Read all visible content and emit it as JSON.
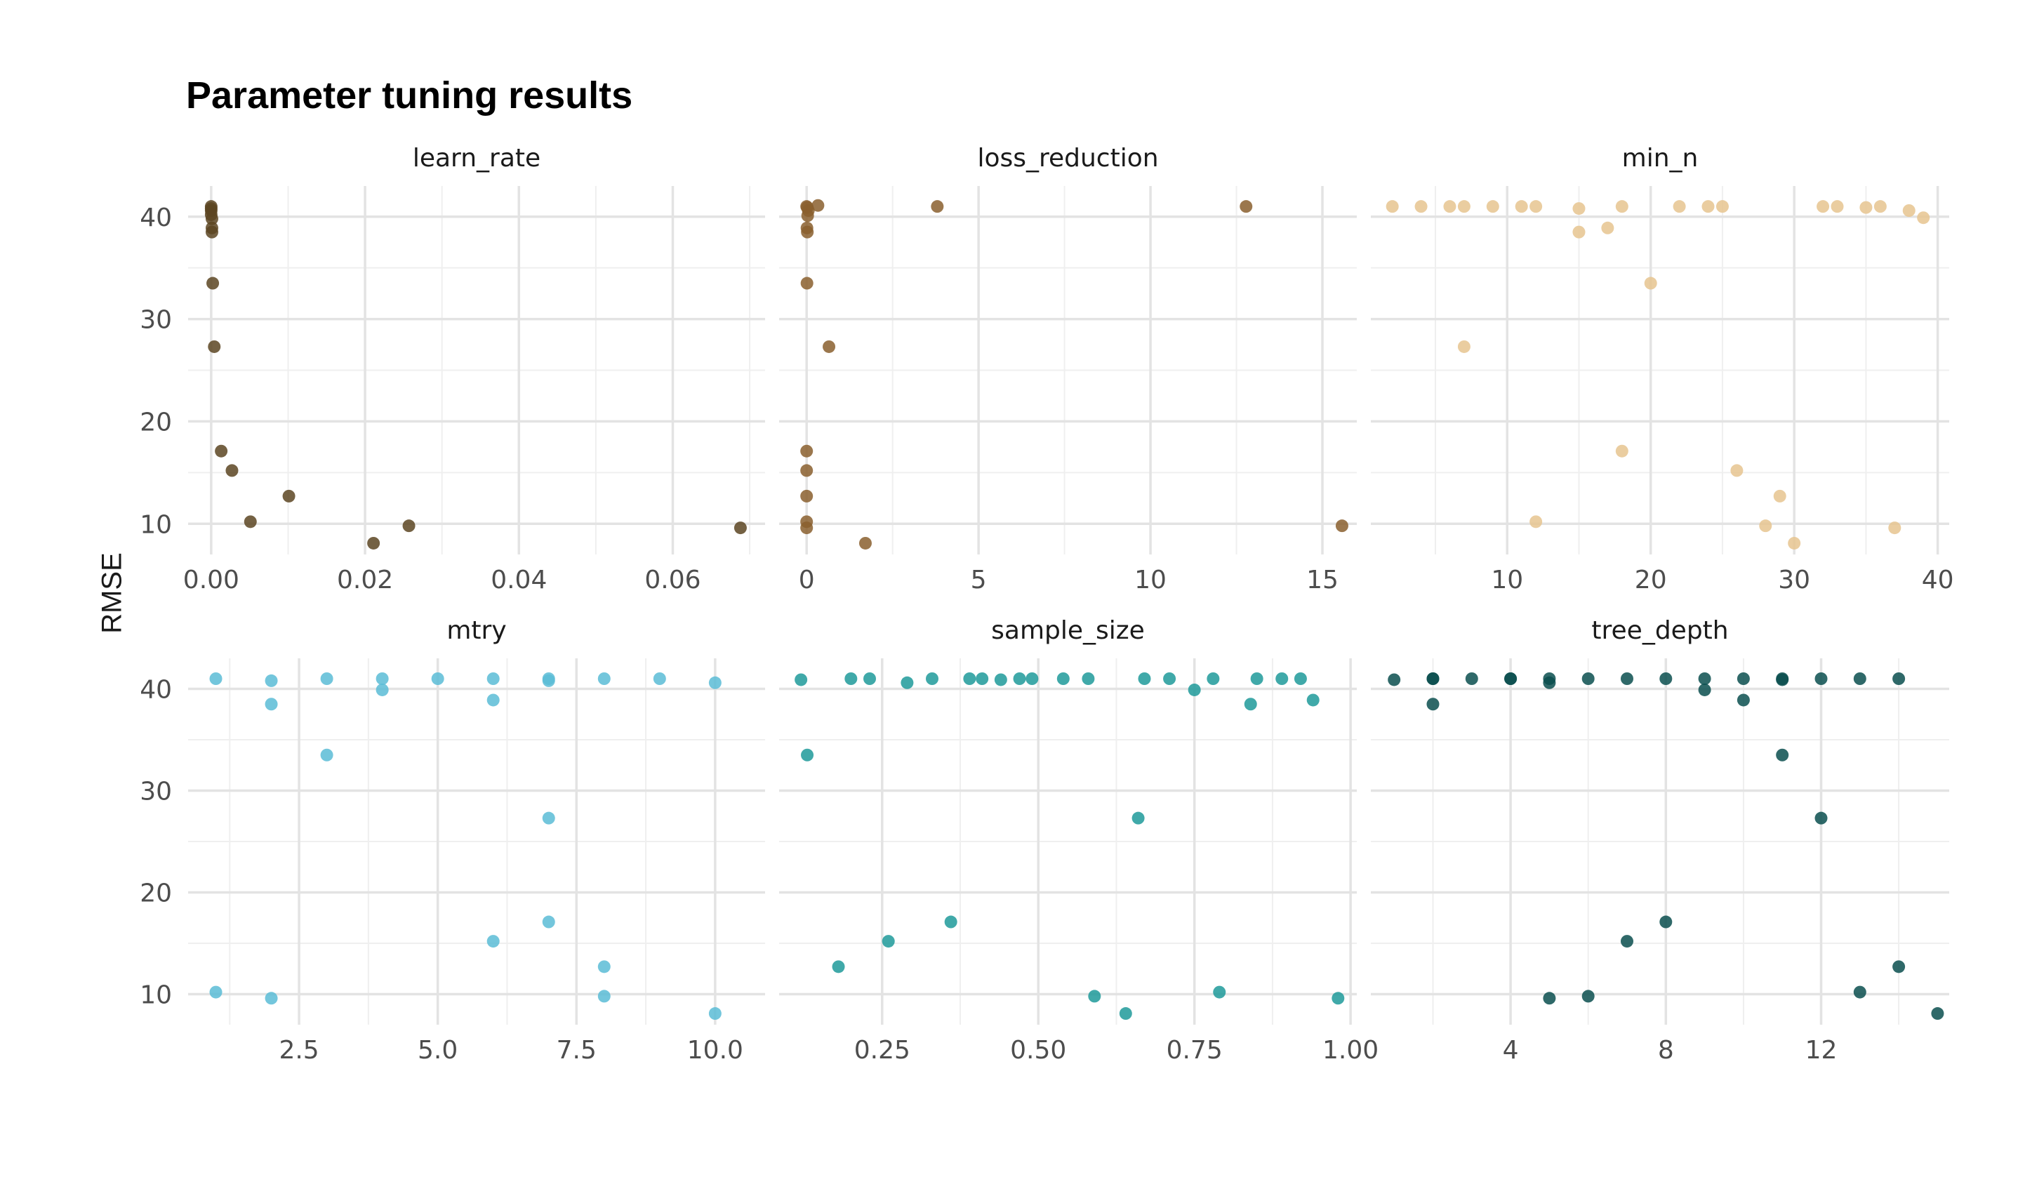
{
  "chart_data": {
    "type": "scatter",
    "title": "Parameter tuning results",
    "ylabel": "RMSE",
    "ylim": [
      7,
      43
    ],
    "y_ticks": [
      10,
      20,
      30,
      40
    ],
    "grid": true,
    "panels": [
      {
        "name": "learn_rate",
        "color": "#5c4522",
        "xlim": [
          -0.003,
          0.072
        ],
        "x_ticks": [
          0.0,
          0.02,
          0.04,
          0.06
        ],
        "x_tick_labels": [
          "0.00",
          "0.02",
          "0.04",
          "0.06"
        ],
        "x_minor": [
          0.01,
          0.03,
          0.05,
          0.07
        ],
        "points": [
          [
            0.0,
            41.0
          ],
          [
            0.0,
            40.8
          ],
          [
            0.0,
            40.6
          ],
          [
            0.0,
            40.2
          ],
          [
            0.0001,
            39.8
          ],
          [
            0.0001,
            38.9
          ],
          [
            0.0001,
            38.5
          ],
          [
            0.0002,
            33.5
          ],
          [
            0.0004,
            27.3
          ],
          [
            0.0013,
            17.1
          ],
          [
            0.0027,
            15.2
          ],
          [
            0.0051,
            10.2
          ],
          [
            0.0101,
            12.7
          ],
          [
            0.0211,
            8.1
          ],
          [
            0.0257,
            9.8
          ],
          [
            0.0688,
            9.6
          ]
        ]
      },
      {
        "name": "loss_reduction",
        "color": "#8a5f2e",
        "xlim": [
          -0.8,
          16.0
        ],
        "x_ticks": [
          0,
          5,
          10,
          15
        ],
        "x_tick_labels": [
          "0",
          "5",
          "10",
          "15"
        ],
        "x_minor": [
          2.5,
          7.5,
          12.5
        ],
        "points": [
          [
            0.0,
            41.0
          ],
          [
            0.02,
            40.9
          ],
          [
            0.05,
            40.6
          ],
          [
            0.03,
            40.1
          ],
          [
            0.01,
            38.9
          ],
          [
            0.02,
            38.5
          ],
          [
            0.01,
            33.5
          ],
          [
            0.65,
            27.3
          ],
          [
            0.0,
            17.1
          ],
          [
            0.0,
            15.2
          ],
          [
            0.0,
            12.7
          ],
          [
            0.0,
            10.2
          ],
          [
            0.0,
            9.6
          ],
          [
            1.71,
            8.1
          ],
          [
            3.8,
            41.0
          ],
          [
            0.33,
            41.1
          ],
          [
            12.78,
            41.0
          ],
          [
            15.57,
            9.8
          ]
        ]
      },
      {
        "name": "min_n",
        "color": "#e6c48f",
        "xlim": [
          0.5,
          40.8
        ],
        "x_ticks": [
          10,
          20,
          30,
          40
        ],
        "x_tick_labels": [
          "10",
          "20",
          "30",
          "40"
        ],
        "x_minor": [
          5,
          15,
          25,
          35
        ],
        "points": [
          [
            2,
            41.0
          ],
          [
            4,
            41.0
          ],
          [
            6,
            41.0
          ],
          [
            7,
            41.0
          ],
          [
            9,
            41.0
          ],
          [
            11,
            41.0
          ],
          [
            12,
            41.0
          ],
          [
            15,
            40.8
          ],
          [
            15,
            38.5
          ],
          [
            17,
            38.9
          ],
          [
            18,
            41.0
          ],
          [
            20,
            33.5
          ],
          [
            22,
            41.0
          ],
          [
            24,
            41.0
          ],
          [
            25,
            41.0
          ],
          [
            32,
            41.0
          ],
          [
            33,
            41.0
          ],
          [
            35,
            40.9
          ],
          [
            36,
            41.0
          ],
          [
            38,
            40.6
          ],
          [
            39,
            39.9
          ],
          [
            7,
            27.3
          ],
          [
            18,
            17.1
          ],
          [
            12,
            10.2
          ],
          [
            26,
            15.2
          ],
          [
            28,
            9.8
          ],
          [
            29,
            12.7
          ],
          [
            30,
            8.1
          ],
          [
            37,
            9.6
          ]
        ]
      },
      {
        "name": "mtry",
        "color": "#5bbcd6",
        "xlim": [
          0.5,
          10.9
        ],
        "x_ticks": [
          2.5,
          5.0,
          7.5,
          10.0
        ],
        "x_tick_labels": [
          "2.5",
          "5.0",
          "7.5",
          "10.0"
        ],
        "x_minor": [
          1.25,
          3.75,
          6.25,
          8.75
        ],
        "points": [
          [
            1,
            41.0
          ],
          [
            2,
            40.8
          ],
          [
            2,
            38.5
          ],
          [
            3,
            41.0
          ],
          [
            3,
            33.5
          ],
          [
            4,
            41.0
          ],
          [
            4,
            39.9
          ],
          [
            5,
            41.0
          ],
          [
            6,
            41.0
          ],
          [
            6,
            38.9
          ],
          [
            7,
            41.0
          ],
          [
            7,
            40.8
          ],
          [
            8,
            41.0
          ],
          [
            9,
            41.0
          ],
          [
            10,
            40.6
          ],
          [
            7,
            27.3
          ],
          [
            6,
            15.2
          ],
          [
            7,
            17.1
          ],
          [
            8,
            12.7
          ],
          [
            8,
            9.8
          ],
          [
            1,
            10.2
          ],
          [
            2,
            9.6
          ],
          [
            10,
            8.1
          ]
        ]
      },
      {
        "name": "sample_size",
        "color": "#1f9a9a",
        "xlim": [
          0.085,
          1.01
        ],
        "x_ticks": [
          0.25,
          0.5,
          0.75,
          1.0
        ],
        "x_tick_labels": [
          "0.25",
          "0.50",
          "0.75",
          "1.00"
        ],
        "x_minor": [
          0.375,
          0.625,
          0.875
        ],
        "points": [
          [
            0.12,
            40.9
          ],
          [
            0.2,
            41.0
          ],
          [
            0.23,
            41.0
          ],
          [
            0.29,
            40.6
          ],
          [
            0.33,
            41.0
          ],
          [
            0.39,
            41.0
          ],
          [
            0.41,
            41.0
          ],
          [
            0.44,
            40.9
          ],
          [
            0.47,
            41.0
          ],
          [
            0.49,
            41.0
          ],
          [
            0.54,
            41.0
          ],
          [
            0.58,
            41.0
          ],
          [
            0.67,
            41.0
          ],
          [
            0.71,
            41.0
          ],
          [
            0.78,
            41.0
          ],
          [
            0.85,
            41.0
          ],
          [
            0.89,
            41.0
          ],
          [
            0.92,
            41.0
          ],
          [
            0.75,
            39.9
          ],
          [
            0.84,
            38.5
          ],
          [
            0.94,
            38.9
          ],
          [
            0.13,
            33.5
          ],
          [
            0.66,
            27.3
          ],
          [
            0.36,
            17.1
          ],
          [
            0.26,
            15.2
          ],
          [
            0.18,
            12.7
          ],
          [
            0.59,
            9.8
          ],
          [
            0.64,
            8.1
          ],
          [
            0.79,
            10.2
          ],
          [
            0.98,
            9.6
          ]
        ]
      },
      {
        "name": "tree_depth",
        "color": "#0b4f4f",
        "xlim": [
          0.4,
          15.3
        ],
        "x_ticks": [
          4,
          8,
          12
        ],
        "x_tick_labels": [
          "4",
          "8",
          "12"
        ],
        "x_minor": [
          2,
          6,
          10,
          14
        ],
        "points": [
          [
            1,
            40.9
          ],
          [
            2,
            41.0
          ],
          [
            2,
            41.0
          ],
          [
            3,
            41.0
          ],
          [
            4,
            41.0
          ],
          [
            4,
            41.0
          ],
          [
            5,
            41.0
          ],
          [
            5,
            40.6
          ],
          [
            6,
            41.0
          ],
          [
            7,
            41.0
          ],
          [
            8,
            41.0
          ],
          [
            9,
            41.0
          ],
          [
            9,
            39.9
          ],
          [
            10,
            41.0
          ],
          [
            11,
            41.0
          ],
          [
            11,
            40.9
          ],
          [
            12,
            41.0
          ],
          [
            13,
            41.0
          ],
          [
            14,
            41.0
          ],
          [
            2,
            38.5
          ],
          [
            10,
            38.9
          ],
          [
            11,
            33.5
          ],
          [
            12,
            27.3
          ],
          [
            7,
            15.2
          ],
          [
            8,
            17.1
          ],
          [
            5,
            9.6
          ],
          [
            6,
            9.8
          ],
          [
            13,
            10.2
          ],
          [
            14,
            12.7
          ],
          [
            15,
            8.1
          ]
        ]
      }
    ]
  }
}
